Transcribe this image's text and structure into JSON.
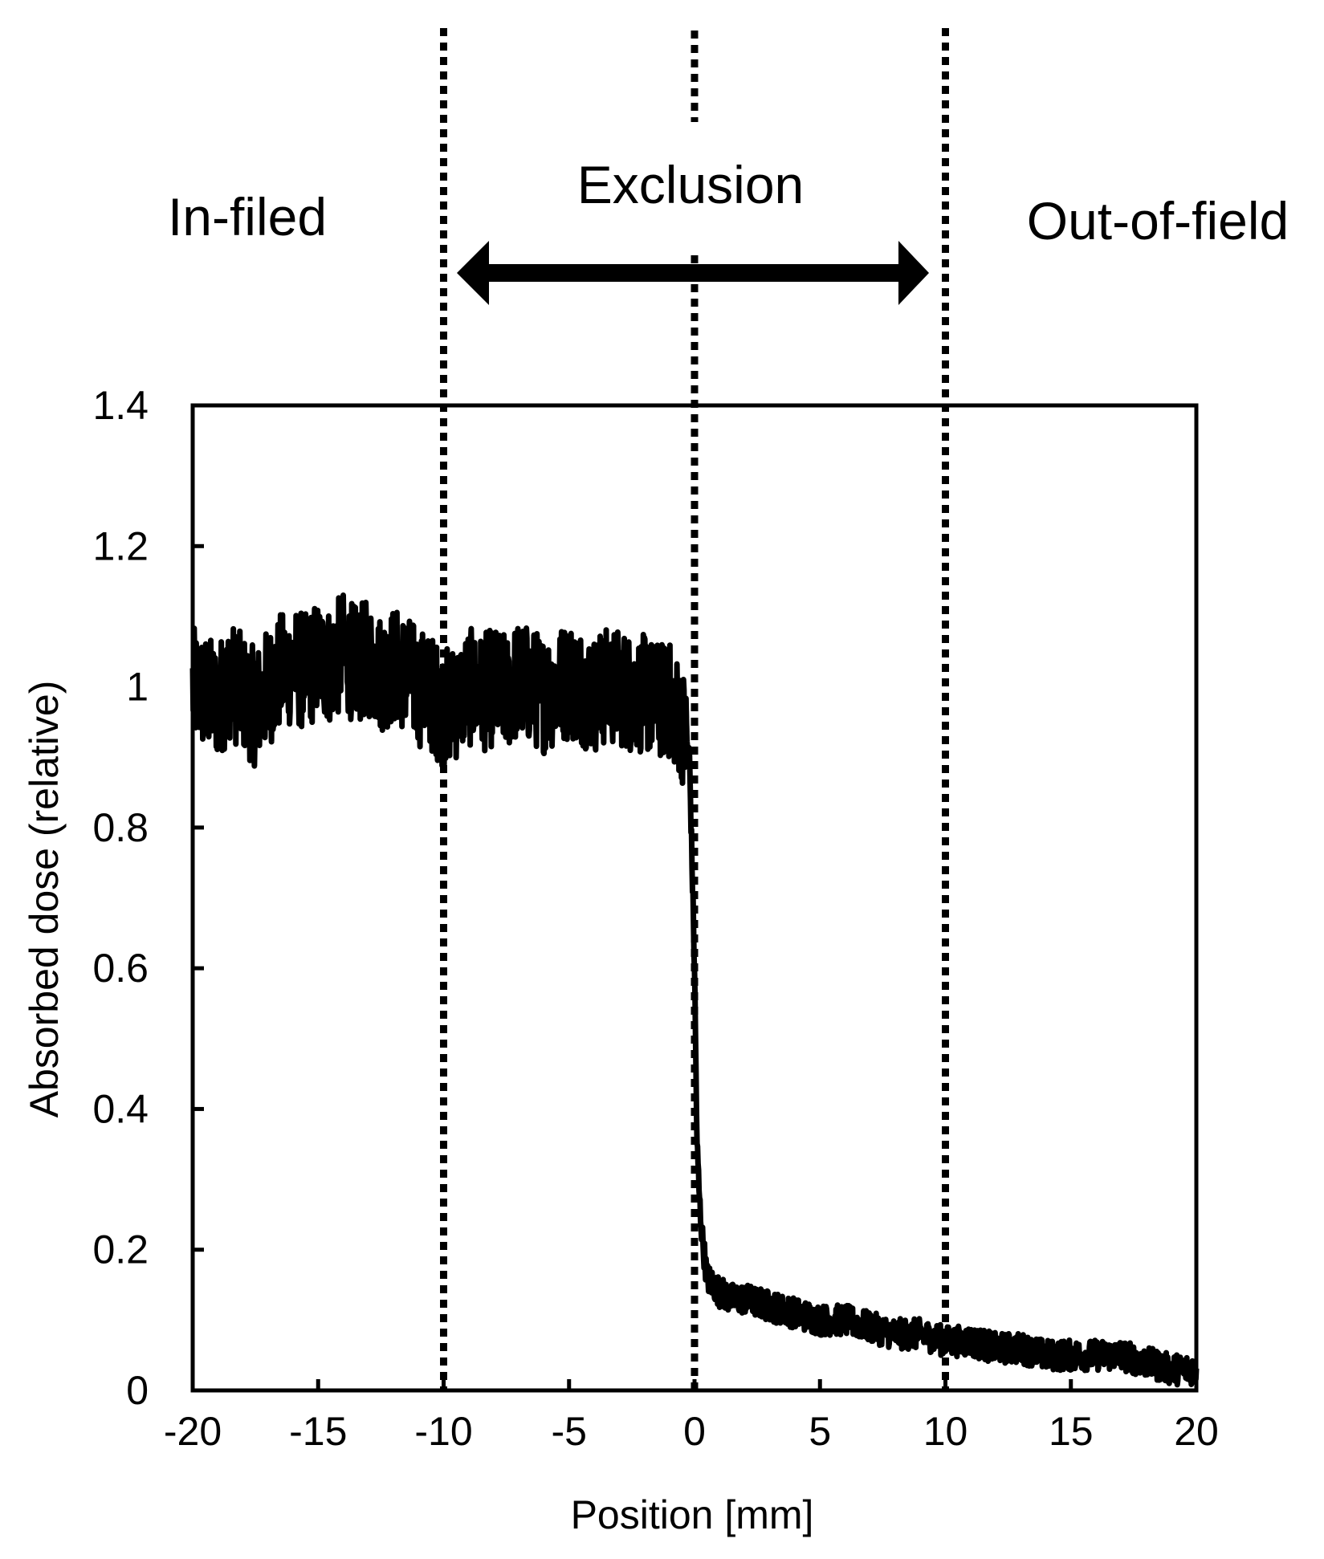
{
  "chart_data": {
    "type": "line",
    "title": "",
    "xlabel": "Position [mm]",
    "ylabel": "Absorbed dose (relative)",
    "xlim": [
      -20,
      20
    ],
    "ylim": [
      0,
      1.4
    ],
    "x_ticks": [
      -20,
      -15,
      -10,
      -5,
      0,
      5,
      10,
      15,
      20
    ],
    "y_ticks": [
      0,
      0.2,
      0.4,
      0.6,
      0.8,
      1,
      1.2,
      1.4
    ],
    "x_tick_labels": [
      "-20",
      "-15",
      "-10",
      "-5",
      "0",
      "5",
      "10",
      "15",
      "20"
    ],
    "y_tick_labels": [
      "0",
      "0.2",
      "0.4",
      "0.6",
      "0.8",
      "1",
      "1.2",
      "1.4"
    ],
    "grid": false,
    "legend": "none",
    "line_color": "#000000",
    "series": [
      {
        "x": [
          -20,
          -19.5,
          -19,
          -18.5,
          -18,
          -17.5,
          -17,
          -16.5,
          -16,
          -15.5,
          -15,
          -14.5,
          -14,
          -13.5,
          -13,
          -12.5,
          -12,
          -11.5,
          -11,
          -10.5,
          -10,
          -9.5,
          -9,
          -8.5,
          -8,
          -7.5,
          -7,
          -6.5,
          -6,
          -5.5,
          -5,
          -4.5,
          -4,
          -3.5,
          -3,
          -2.5,
          -2,
          -1.5,
          -1,
          -0.5,
          -0.2,
          0,
          0.1,
          0.2,
          0.3,
          0.5,
          1,
          1.5,
          2,
          3,
          4,
          5,
          6,
          7,
          8,
          9,
          10,
          11,
          12,
          13,
          14,
          15,
          16,
          17,
          18,
          19,
          20
        ],
        "y": [
          1.0,
          0.99,
          0.98,
          1.01,
          0.99,
          0.97,
          1.0,
          1.02,
          1.03,
          1.02,
          1.04,
          1.03,
          1.05,
          1.03,
          1.04,
          1.02,
          1.03,
          1.02,
          1.0,
          0.99,
          0.97,
          0.98,
          1.0,
          0.99,
          1.0,
          0.99,
          1.01,
          1.0,
          0.99,
          1.0,
          1.01,
          1.0,
          0.99,
          1.0,
          1.0,
          0.99,
          0.99,
          0.98,
          0.98,
          0.95,
          0.9,
          0.6,
          0.35,
          0.27,
          0.22,
          0.16,
          0.14,
          0.13,
          0.13,
          0.12,
          0.11,
          0.1,
          0.1,
          0.09,
          0.08,
          0.08,
          0.07,
          0.07,
          0.06,
          0.06,
          0.05,
          0.05,
          0.05,
          0.05,
          0.04,
          0.03,
          0.03
        ]
      }
    ],
    "vertical_lines": [
      -10,
      0,
      10
    ],
    "annotations": {
      "left": "In-filed",
      "center": "Exclusion",
      "right": "Out-of-field"
    }
  }
}
